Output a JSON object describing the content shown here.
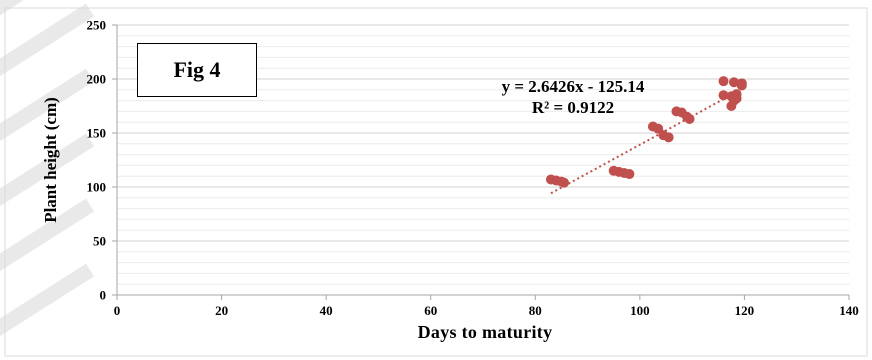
{
  "figure_label": "Fig 4",
  "chart_data": {
    "type": "scatter",
    "xlabel": "Days to maturity",
    "ylabel": "Plant height (cm)",
    "xlim": [
      0,
      140
    ],
    "ylim": [
      0,
      250
    ],
    "x_ticks": [
      0,
      20,
      40,
      60,
      80,
      100,
      120,
      140
    ],
    "y_ticks": [
      0,
      50,
      100,
      150,
      200,
      250
    ],
    "grid": true,
    "marker_color": "#c0504d",
    "trendline_color": "#c0504d",
    "trendline": {
      "type": "linear",
      "slope": 2.6426,
      "intercept": -125.14,
      "x_range": [
        83,
        118
      ],
      "equation_text": "y = 2.6426x - 125.14",
      "r2_text": "R² = 0.9122"
    },
    "series": [
      {
        "points": [
          [
            83,
            107
          ],
          [
            84,
            106
          ],
          [
            85,
            105
          ],
          [
            85.5,
            104
          ],
          [
            95,
            115
          ],
          [
            96,
            114
          ],
          [
            97,
            113
          ],
          [
            98,
            112
          ],
          [
            102.5,
            156
          ],
          [
            103.5,
            154
          ],
          [
            104.5,
            148
          ],
          [
            105.5,
            146
          ],
          [
            107,
            170
          ],
          [
            108,
            169
          ],
          [
            109,
            165
          ],
          [
            109.5,
            163
          ],
          [
            116,
            198
          ],
          [
            116,
            185
          ],
          [
            117.5,
            184
          ],
          [
            117.5,
            175
          ],
          [
            118,
            180
          ],
          [
            118,
            197
          ],
          [
            118.5,
            186
          ],
          [
            118.5,
            182
          ],
          [
            119.5,
            196
          ],
          [
            119.5,
            194
          ]
        ]
      }
    ]
  }
}
